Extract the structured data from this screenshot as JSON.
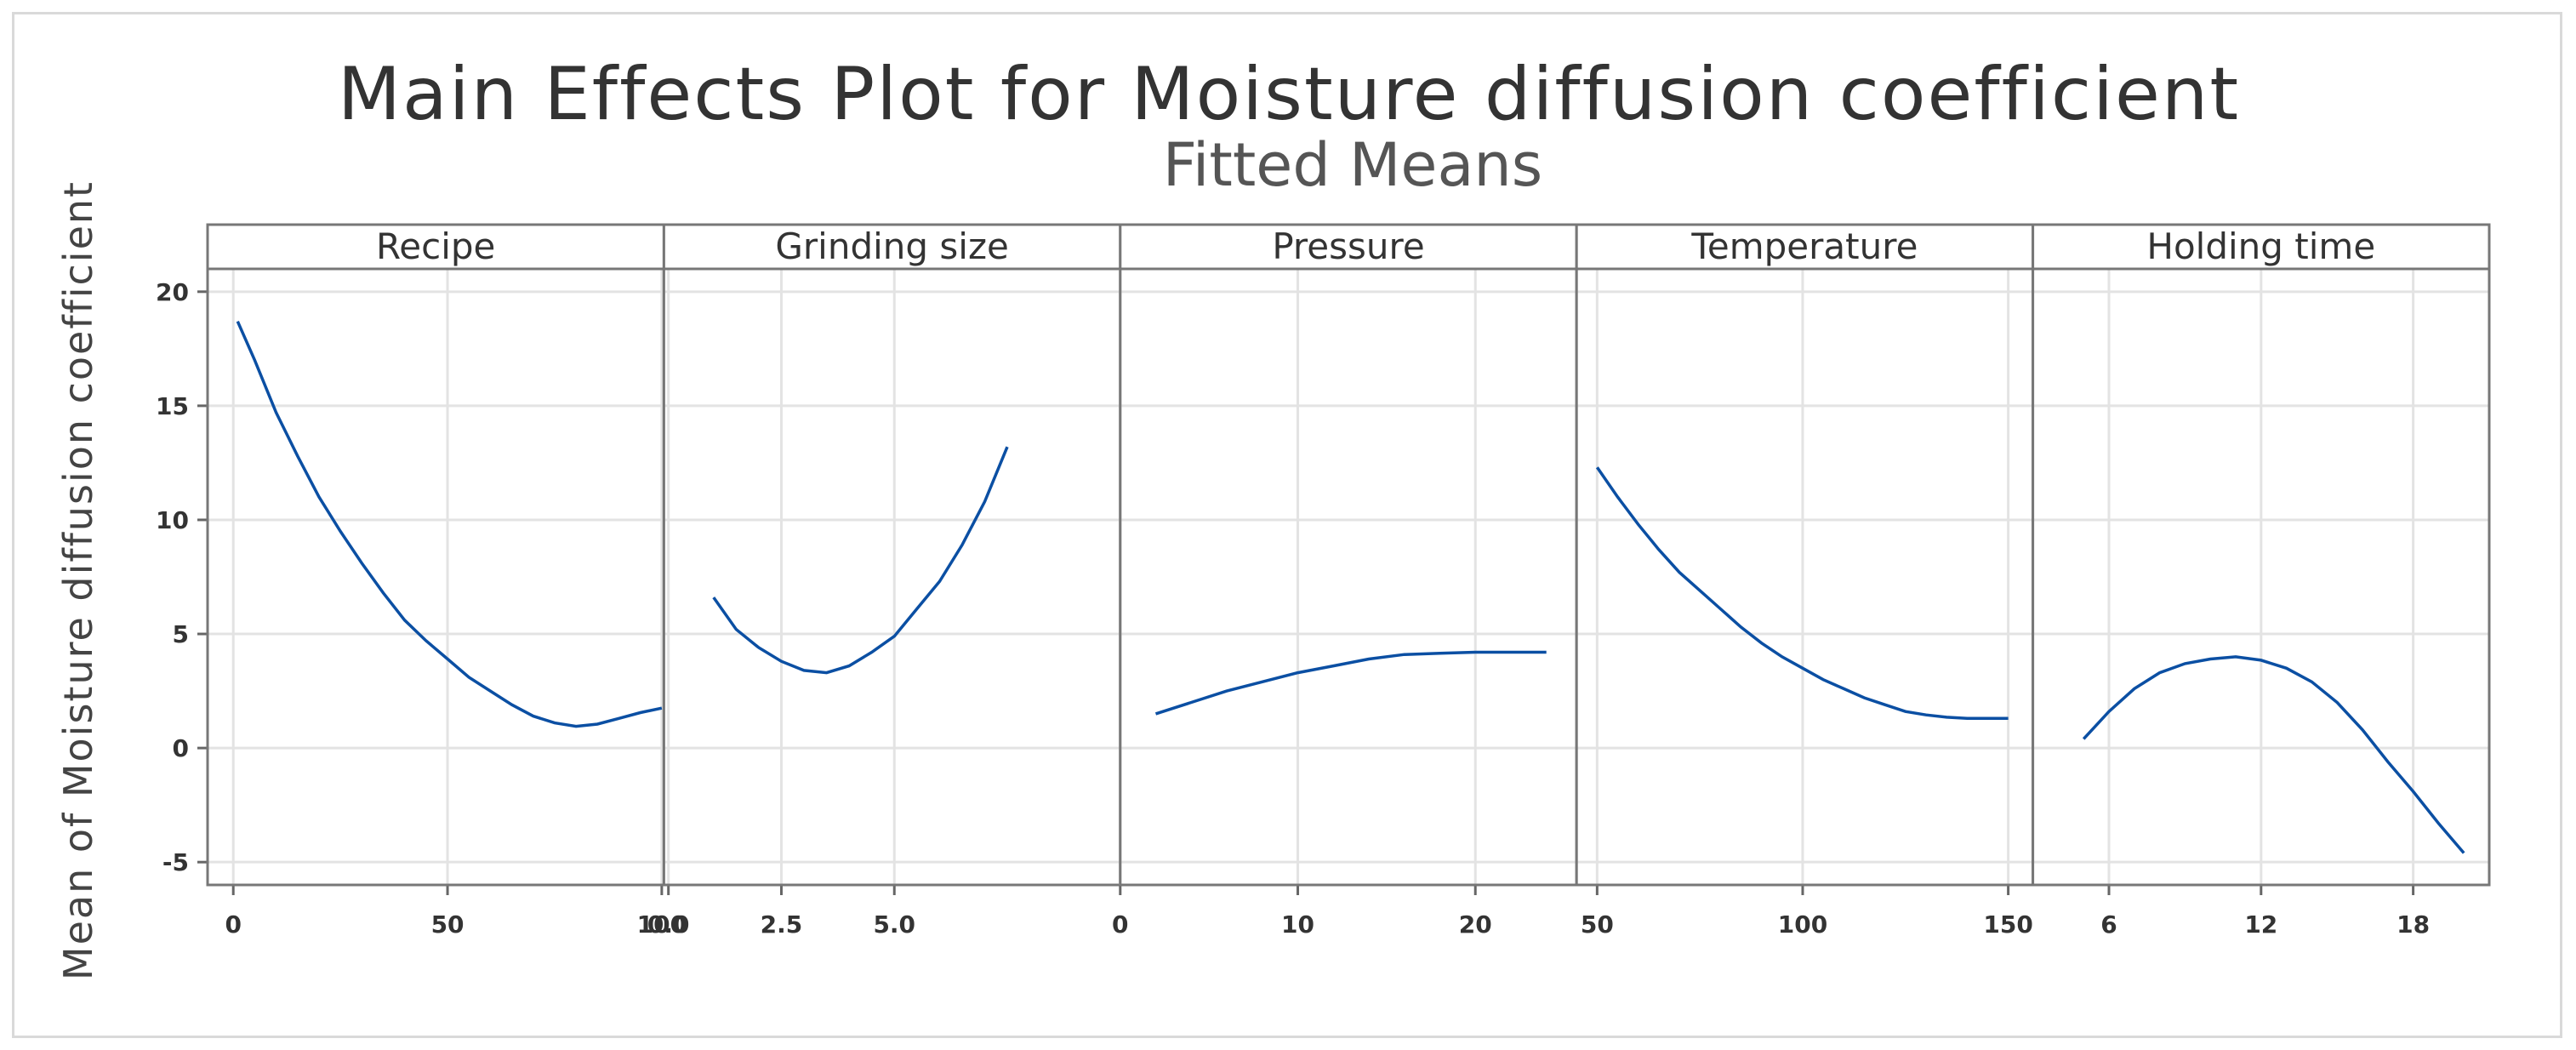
{
  "chart_data": {
    "type": "line",
    "title": "Main Effects Plot for Moisture diffusion coefficient",
    "subtitle": "Fitted Means",
    "ylabel": "Mean of Moisture diffusion coefficient",
    "ylim": [
      -6,
      21
    ],
    "yticks": [
      -5,
      0,
      5,
      10,
      15,
      20
    ],
    "grid": true,
    "line_color": "#0b4fa3",
    "panels": [
      {
        "name": "Recipe",
        "xlim": [
          -6,
          100.5
        ],
        "xticks": [
          {
            "v": 0,
            "label": "0"
          },
          {
            "v": 50,
            "label": "50"
          },
          {
            "v": 100,
            "label": "100"
          }
        ],
        "points": [
          [
            1,
            18.7
          ],
          [
            5,
            17.0
          ],
          [
            10,
            14.7
          ],
          [
            15,
            12.8
          ],
          [
            20,
            11.0
          ],
          [
            25,
            9.5
          ],
          [
            30,
            8.1
          ],
          [
            35,
            6.8
          ],
          [
            40,
            5.6
          ],
          [
            45,
            4.7
          ],
          [
            50,
            3.9
          ],
          [
            55,
            3.1
          ],
          [
            60,
            2.5
          ],
          [
            65,
            1.9
          ],
          [
            70,
            1.4
          ],
          [
            75,
            1.1
          ],
          [
            80,
            0.95
          ],
          [
            85,
            1.05
          ],
          [
            90,
            1.3
          ],
          [
            95,
            1.55
          ],
          [
            100,
            1.75
          ]
        ]
      },
      {
        "name": "Grinding size",
        "xlim": [
          -0.1,
          10
        ],
        "xticks": [
          {
            "v": 0,
            "label": "0.0"
          },
          {
            "v": 2.5,
            "label": "2.5"
          },
          {
            "v": 5.0,
            "label": "5.0"
          }
        ],
        "points": [
          [
            1,
            6.6
          ],
          [
            1.5,
            5.2
          ],
          [
            2,
            4.4
          ],
          [
            2.5,
            3.8
          ],
          [
            3,
            3.4
          ],
          [
            3.5,
            3.3
          ],
          [
            4,
            3.6
          ],
          [
            4.5,
            4.2
          ],
          [
            5,
            4.9
          ],
          [
            5.5,
            6.1
          ],
          [
            6,
            7.3
          ],
          [
            6.5,
            8.9
          ],
          [
            7,
            10.8
          ],
          [
            7.5,
            13.2
          ]
        ]
      },
      {
        "name": "Pressure",
        "xlim": [
          0,
          25.7
        ],
        "xticks": [
          {
            "v": 0,
            "label": "0"
          },
          {
            "v": 10,
            "label": "10"
          },
          {
            "v": 20,
            "label": "20"
          }
        ],
        "points": [
          [
            2,
            1.5
          ],
          [
            4,
            2.0
          ],
          [
            6,
            2.5
          ],
          [
            8,
            2.9
          ],
          [
            10,
            3.3
          ],
          [
            12,
            3.6
          ],
          [
            14,
            3.9
          ],
          [
            16,
            4.1
          ],
          [
            18,
            4.15
          ],
          [
            20,
            4.2
          ],
          [
            22,
            4.2
          ],
          [
            24,
            4.2
          ]
        ]
      },
      {
        "name": "Temperature",
        "xlim": [
          45,
          156
        ],
        "xticks": [
          {
            "v": 50,
            "label": "50"
          },
          {
            "v": 100,
            "label": "100"
          },
          {
            "v": 150,
            "label": "150"
          }
        ],
        "points": [
          [
            50,
            12.3
          ],
          [
            55,
            11.0
          ],
          [
            60,
            9.8
          ],
          [
            65,
            8.7
          ],
          [
            70,
            7.7
          ],
          [
            75,
            6.9
          ],
          [
            80,
            6.1
          ],
          [
            85,
            5.3
          ],
          [
            90,
            4.6
          ],
          [
            95,
            4.0
          ],
          [
            100,
            3.5
          ],
          [
            105,
            3.0
          ],
          [
            110,
            2.6
          ],
          [
            115,
            2.2
          ],
          [
            120,
            1.9
          ],
          [
            125,
            1.6
          ],
          [
            130,
            1.45
          ],
          [
            135,
            1.35
          ],
          [
            140,
            1.3
          ],
          [
            145,
            1.3
          ],
          [
            150,
            1.3
          ]
        ]
      },
      {
        "name": "Holding time",
        "xlim": [
          3,
          21
        ],
        "xticks": [
          {
            "v": 6,
            "label": "6"
          },
          {
            "v": 12,
            "label": "12"
          },
          {
            "v": 18,
            "label": "18"
          }
        ],
        "points": [
          [
            5,
            0.4
          ],
          [
            6,
            1.6
          ],
          [
            7,
            2.6
          ],
          [
            8,
            3.3
          ],
          [
            9,
            3.7
          ],
          [
            10,
            3.9
          ],
          [
            11,
            4.0
          ],
          [
            12,
            3.85
          ],
          [
            13,
            3.5
          ],
          [
            14,
            2.9
          ],
          [
            15,
            2.0
          ],
          [
            16,
            0.8
          ],
          [
            17,
            -0.6
          ],
          [
            18,
            -1.9
          ],
          [
            19,
            -3.3
          ],
          [
            20,
            -4.6
          ]
        ]
      }
    ]
  }
}
